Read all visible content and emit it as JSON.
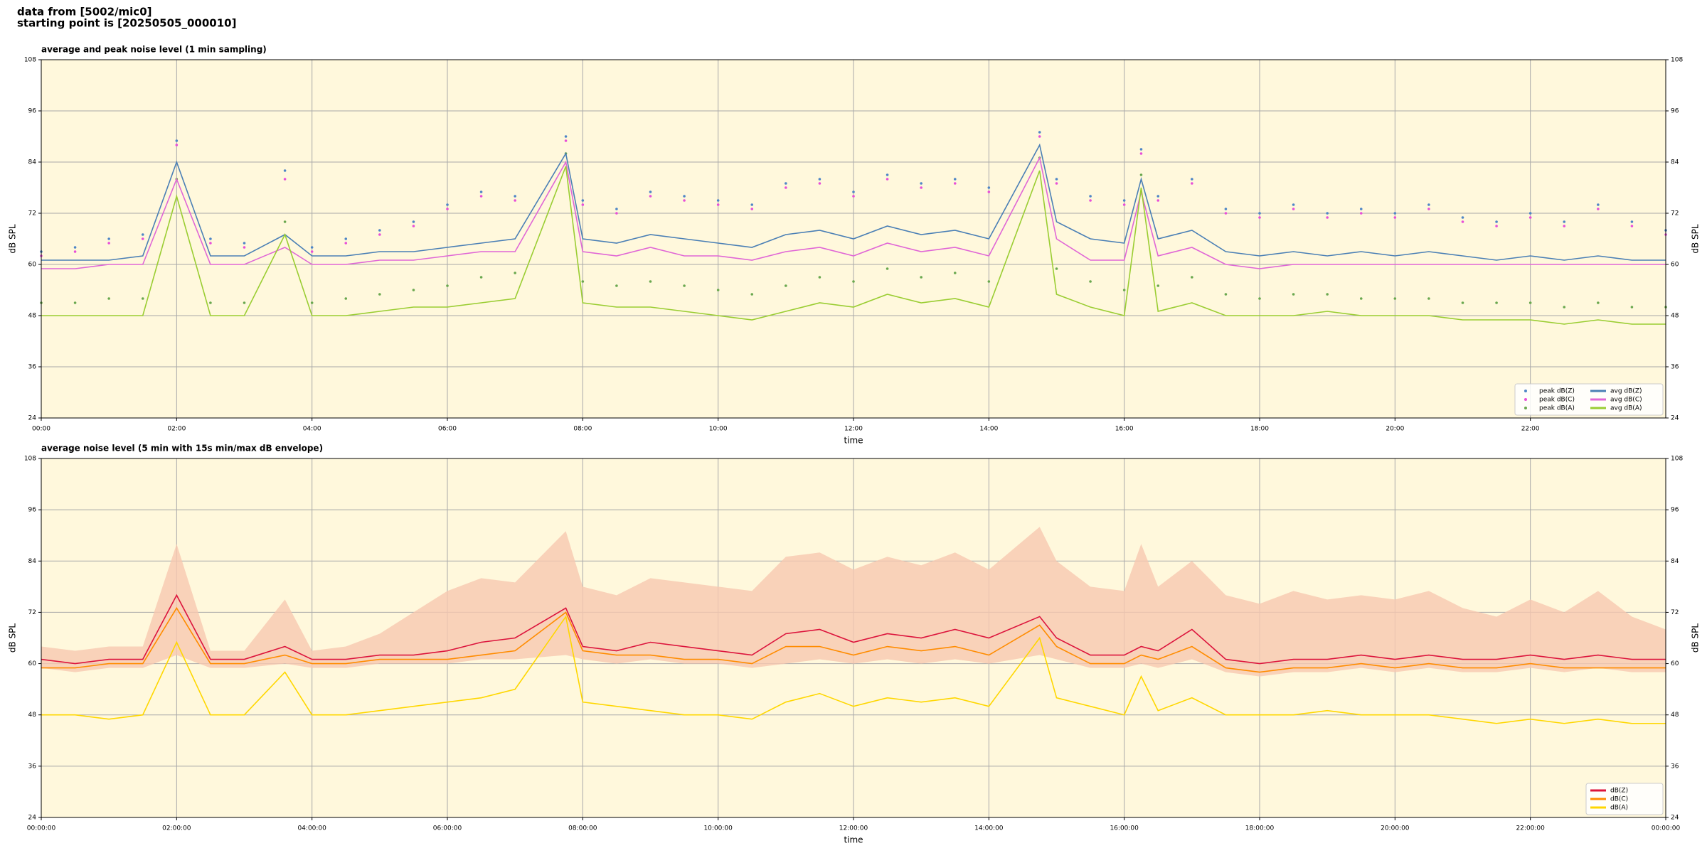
{
  "header": {
    "line1": "data from [5002/mic0]",
    "line2": "starting point is [20250505_000010]"
  },
  "chart_data": [
    {
      "type": "line",
      "title": "average and peak noise level (1 min sampling)",
      "xlabel": "time",
      "ylabel": "dB SPL",
      "x": [
        0,
        0.5,
        1,
        1.5,
        2,
        2.5,
        3,
        3.6,
        4,
        4.5,
        5,
        5.5,
        6,
        6.5,
        7,
        7.75,
        8,
        8.5,
        9,
        9.5,
        10,
        10.5,
        11,
        11.5,
        12,
        12.5,
        13,
        13.5,
        14,
        14.75,
        15,
        15.5,
        16,
        16.25,
        16.5,
        17,
        17.5,
        18,
        18.5,
        19,
        19.5,
        20,
        20.5,
        21,
        21.5,
        22,
        22.5,
        23,
        23.5,
        24
      ],
      "xlim": [
        0,
        24
      ],
      "xticks": [
        {
          "value": 0,
          "label": "00:00"
        },
        {
          "value": 2,
          "label": "02:00"
        },
        {
          "value": 4,
          "label": "04:00"
        },
        {
          "value": 6,
          "label": "06:00"
        },
        {
          "value": 8,
          "label": "08:00"
        },
        {
          "value": 10,
          "label": "10:00"
        },
        {
          "value": 12,
          "label": "12:00"
        },
        {
          "value": 14,
          "label": "14:00"
        },
        {
          "value": 16,
          "label": "16:00"
        },
        {
          "value": 18,
          "label": "18:00"
        },
        {
          "value": 20,
          "label": "20:00"
        },
        {
          "value": 22,
          "label": "22:00"
        }
      ],
      "ylim": [
        24,
        108
      ],
      "yticks": [
        24,
        36,
        48,
        60,
        72,
        84,
        96,
        108
      ],
      "grid": true,
      "legend": "lower right",
      "legend_columns": 2,
      "series": [
        {
          "name": "peak dB(Z)",
          "kind": "scatter",
          "color": "#4f86c6",
          "values": [
            63,
            64,
            66,
            67,
            89,
            66,
            65,
            82,
            64,
            66,
            68,
            70,
            74,
            77,
            76,
            90,
            75,
            73,
            77,
            76,
            75,
            74,
            79,
            80,
            77,
            81,
            79,
            80,
            78,
            91,
            80,
            76,
            75,
            87,
            76,
            80,
            73,
            72,
            74,
            72,
            73,
            72,
            74,
            71,
            70,
            72,
            70,
            74,
            70,
            68
          ]
        },
        {
          "name": "peak dB(C)",
          "kind": "scatter",
          "color": "#e84fd8",
          "values": [
            62,
            63,
            65,
            66,
            88,
            65,
            64,
            80,
            63,
            65,
            67,
            69,
            73,
            76,
            75,
            89,
            74,
            72,
            76,
            75,
            74,
            73,
            78,
            79,
            76,
            80,
            78,
            79,
            77,
            90,
            79,
            75,
            74,
            86,
            75,
            79,
            72,
            71,
            73,
            71,
            72,
            71,
            73,
            70,
            69,
            71,
            69,
            73,
            69,
            67
          ]
        },
        {
          "name": "peak dB(A)",
          "kind": "scatter",
          "color": "#6aa84f",
          "values": [
            51,
            51,
            52,
            52,
            80,
            51,
            51,
            70,
            51,
            52,
            53,
            54,
            55,
            57,
            58,
            86,
            56,
            55,
            56,
            55,
            54,
            53,
            55,
            57,
            56,
            59,
            57,
            58,
            56,
            85,
            59,
            56,
            54,
            81,
            55,
            57,
            53,
            52,
            53,
            53,
            52,
            52,
            52,
            51,
            51,
            51,
            50,
            51,
            50,
            50
          ]
        },
        {
          "name": "avg dB(Z)",
          "kind": "line",
          "color": "#4a7fb5",
          "values": [
            61,
            61,
            61,
            62,
            84,
            62,
            62,
            67,
            62,
            62,
            63,
            63,
            64,
            65,
            66,
            86,
            66,
            65,
            67,
            66,
            65,
            64,
            67,
            68,
            66,
            69,
            67,
            68,
            66,
            88,
            70,
            66,
            65,
            80,
            66,
            68,
            63,
            62,
            63,
            62,
            63,
            62,
            63,
            62,
            61,
            62,
            61,
            62,
            61,
            61
          ]
        },
        {
          "name": "avg dB(C)",
          "kind": "line",
          "color": "#e066d6",
          "values": [
            59,
            59,
            60,
            60,
            80,
            60,
            60,
            64,
            60,
            60,
            61,
            61,
            62,
            63,
            63,
            84,
            63,
            62,
            64,
            62,
            62,
            61,
            63,
            64,
            62,
            65,
            63,
            64,
            62,
            85,
            66,
            61,
            61,
            77,
            62,
            64,
            60,
            59,
            60,
            60,
            60,
            60,
            60,
            60,
            60,
            60,
            60,
            60,
            60,
            60
          ]
        },
        {
          "name": "avg dB(A)",
          "kind": "line",
          "color": "#9acd32",
          "values": [
            48,
            48,
            48,
            48,
            76,
            48,
            48,
            67,
            48,
            48,
            49,
            50,
            50,
            51,
            52,
            83,
            51,
            50,
            50,
            49,
            48,
            47,
            49,
            51,
            50,
            53,
            51,
            52,
            50,
            82,
            53,
            50,
            48,
            78,
            49,
            51,
            48,
            48,
            48,
            49,
            48,
            48,
            48,
            47,
            47,
            47,
            46,
            47,
            46,
            46
          ]
        }
      ]
    },
    {
      "type": "line",
      "title": "average noise level (5 min with 15s min/max dB envelope)",
      "xlabel": "time",
      "ylabel": "dB SPL",
      "x": [
        0,
        0.5,
        1,
        1.5,
        2,
        2.5,
        3,
        3.6,
        4,
        4.5,
        5,
        5.5,
        6,
        6.5,
        7,
        7.75,
        8,
        8.5,
        9,
        9.5,
        10,
        10.5,
        11,
        11.5,
        12,
        12.5,
        13,
        13.5,
        14,
        14.75,
        15,
        15.5,
        16,
        16.25,
        16.5,
        17,
        17.5,
        18,
        18.5,
        19,
        19.5,
        20,
        20.5,
        21,
        21.5,
        22,
        22.5,
        23,
        23.5,
        24
      ],
      "xlim": [
        0,
        24
      ],
      "xticks": [
        {
          "value": 0,
          "label": "00:00:00"
        },
        {
          "value": 2,
          "label": "02:00:00"
        },
        {
          "value": 4,
          "label": "04:00:00"
        },
        {
          "value": 6,
          "label": "06:00:00"
        },
        {
          "value": 8,
          "label": "08:00:00"
        },
        {
          "value": 10,
          "label": "10:00:00"
        },
        {
          "value": 12,
          "label": "12:00:00"
        },
        {
          "value": 14,
          "label": "14:00:00"
        },
        {
          "value": 16,
          "label": "16:00:00"
        },
        {
          "value": 18,
          "label": "18:00:00"
        },
        {
          "value": 20,
          "label": "20:00:00"
        },
        {
          "value": 22,
          "label": "22:00:00"
        },
        {
          "value": 24,
          "label": "00:00:00"
        }
      ],
      "ylim": [
        24,
        108
      ],
      "yticks": [
        24,
        36,
        48,
        60,
        72,
        84,
        96,
        108
      ],
      "grid": true,
      "legend": "lower right",
      "legend_columns": 1,
      "envelope_color": "#f8c8b0",
      "envelope_low": [
        59,
        58,
        59,
        59,
        62,
        59,
        59,
        60,
        59,
        59,
        60,
        60,
        60,
        61,
        61,
        62,
        61,
        60,
        61,
        60,
        60,
        59,
        60,
        61,
        60,
        61,
        60,
        61,
        60,
        62,
        61,
        59,
        59,
        60,
        59,
        61,
        58,
        57,
        58,
        58,
        59,
        58,
        59,
        58,
        58,
        59,
        58,
        59,
        58,
        58
      ],
      "envelope_high": [
        64,
        63,
        64,
        64,
        88,
        63,
        63,
        75,
        63,
        64,
        67,
        72,
        77,
        80,
        79,
        91,
        78,
        76,
        80,
        79,
        78,
        77,
        85,
        86,
        82,
        85,
        83,
        86,
        82,
        92,
        84,
        78,
        77,
        88,
        78,
        84,
        76,
        74,
        77,
        75,
        76,
        75,
        77,
        73,
        71,
        75,
        72,
        77,
        71,
        68
      ],
      "series": [
        {
          "name": "dB(Z)",
          "kind": "line",
          "color": "#dc143c",
          "values": [
            61,
            60,
            61,
            61,
            76,
            61,
            61,
            64,
            61,
            61,
            62,
            62,
            63,
            65,
            66,
            73,
            64,
            63,
            65,
            64,
            63,
            62,
            67,
            68,
            65,
            67,
            66,
            68,
            66,
            71,
            66,
            62,
            62,
            64,
            63,
            68,
            61,
            60,
            61,
            61,
            62,
            61,
            62,
            61,
            61,
            62,
            61,
            62,
            61,
            61
          ]
        },
        {
          "name": "dB(C)",
          "kind": "line",
          "color": "#ff8c00",
          "values": [
            59,
            59,
            60,
            60,
            73,
            60,
            60,
            62,
            60,
            60,
            61,
            61,
            61,
            62,
            63,
            72,
            63,
            62,
            62,
            61,
            61,
            60,
            64,
            64,
            62,
            64,
            63,
            64,
            62,
            69,
            64,
            60,
            60,
            62,
            61,
            64,
            59,
            58,
            59,
            59,
            60,
            59,
            60,
            59,
            59,
            60,
            59,
            59,
            59,
            59
          ]
        },
        {
          "name": "dB(A)",
          "kind": "line",
          "color": "#ffd700",
          "values": [
            48,
            48,
            47,
            48,
            65,
            48,
            48,
            58,
            48,
            48,
            49,
            50,
            51,
            52,
            54,
            71,
            51,
            50,
            49,
            48,
            48,
            47,
            51,
            53,
            50,
            52,
            51,
            52,
            50,
            66,
            52,
            50,
            48,
            57,
            49,
            52,
            48,
            48,
            48,
            49,
            48,
            48,
            48,
            47,
            46,
            47,
            46,
            47,
            46,
            46
          ]
        }
      ]
    }
  ]
}
